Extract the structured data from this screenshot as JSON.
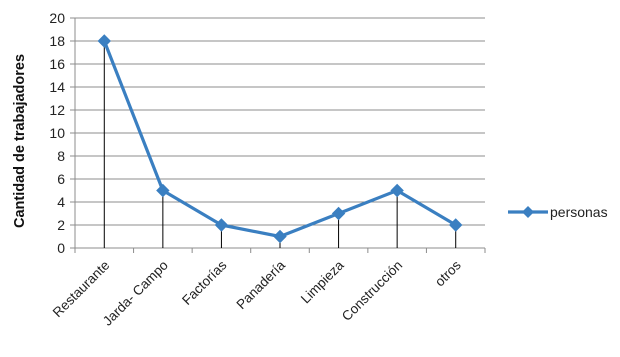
{
  "chart_data": {
    "type": "line",
    "title": "",
    "xlabel": "",
    "ylabel": "Cantidad de trabajadores",
    "categories": [
      "Restaurante",
      "Jarda- Campo",
      "Factorías",
      "Panadería",
      "Limpieza",
      "Construcción",
      "otros"
    ],
    "series": [
      {
        "name": "personas",
        "values": [
          18,
          5,
          2,
          1,
          3,
          5,
          2
        ],
        "color": "#3a7fc1"
      }
    ],
    "ylim": [
      0,
      20
    ],
    "yticks": [
      0,
      2,
      4,
      6,
      8,
      10,
      12,
      14,
      16,
      18,
      20
    ],
    "grid": true,
    "drop_lines": true,
    "legend": "right",
    "marker": "diamond"
  }
}
